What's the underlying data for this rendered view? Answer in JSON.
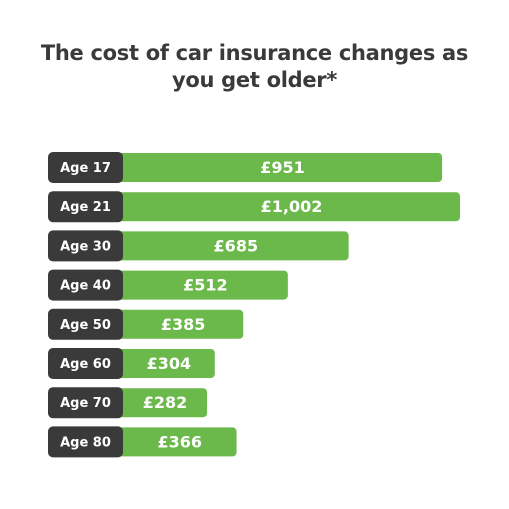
{
  "chart_data": {
    "type": "bar",
    "orientation": "horizontal",
    "title": "The cost of car insurance changes as you get older*",
    "categories": [
      "Age 17",
      "Age 21",
      "Age 30",
      "Age 40",
      "Age 50",
      "Age 60",
      "Age 70",
      "Age 80"
    ],
    "values": [
      951,
      1002,
      685,
      512,
      385,
      304,
      282,
      366
    ],
    "value_labels": [
      "£951",
      "£1,002",
      "£685",
      "£512",
      "£385",
      "£304",
      "£282",
      "£366"
    ],
    "color": "#6cb94b",
    "label_color": "#3a3a3a"
  }
}
